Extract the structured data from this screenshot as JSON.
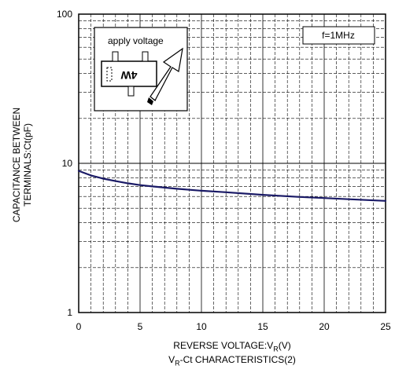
{
  "chart_data": {
    "type": "line",
    "title": "",
    "xlabel": {
      "prefix": "REVERSE VOLTAGE:V",
      "sub": "R",
      "suffix": "(V)"
    },
    "ylabel": {
      "line1": "CAPACITANCE BETWEEN",
      "line2": "TERMINALS:Ct(pF)"
    },
    "caption": {
      "prefix": "V",
      "sub": "R",
      "suffix": "-Ct CHARACTERISTICS(2)"
    },
    "xlim": [
      0,
      25
    ],
    "ylim": [
      1,
      100
    ],
    "yscale": "log",
    "grid": true,
    "x_ticks": [
      "0",
      "5",
      "10",
      "15",
      "20",
      "25"
    ],
    "y_ticks": [
      "1",
      "10",
      "100"
    ],
    "legend_box": "f=1MHz",
    "inset_label": "apply voltage",
    "component_marking": "4W",
    "series": [
      {
        "color": "#1a1a66",
        "x": [
          0,
          1,
          2,
          3,
          4,
          5,
          6,
          8,
          10,
          12,
          15,
          18,
          20,
          22,
          25
        ],
        "y": [
          8.9,
          8.3,
          7.9,
          7.6,
          7.35,
          7.15,
          7.0,
          6.75,
          6.55,
          6.4,
          6.15,
          5.95,
          5.85,
          5.75,
          5.6
        ]
      }
    ]
  }
}
